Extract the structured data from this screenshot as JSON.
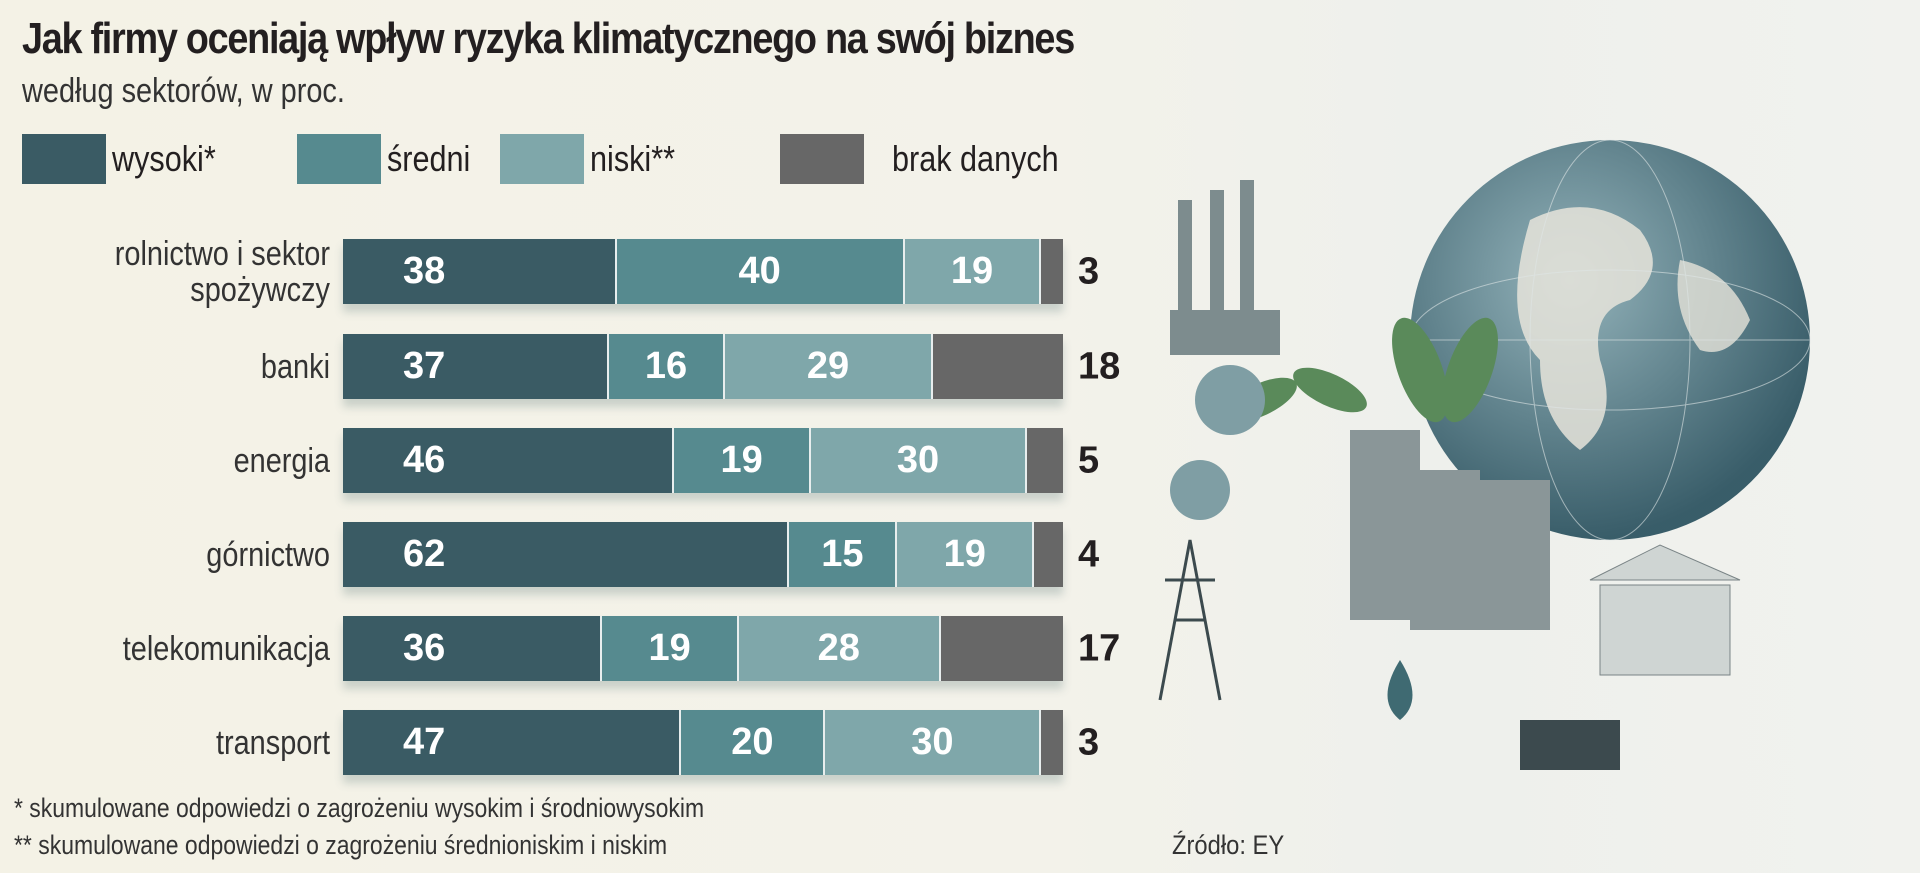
{
  "chart_data": {
    "type": "bar",
    "orientation": "horizontal",
    "stacked": true,
    "title": "Jak firmy oceniają wpływ ryzyka klimatycznego na swój biznes",
    "subtitle": "według sektorów, w proc.",
    "categories": [
      "rolnictwo i sektor spożywczy",
      "banki",
      "energia",
      "górnictwo",
      "telekomunikacja",
      "transport"
    ],
    "series": [
      {
        "name": "wysoki*",
        "color": "#3a5b64",
        "values": [
          38,
          37,
          46,
          62,
          36,
          47
        ]
      },
      {
        "name": "średni",
        "color": "#568a8f",
        "values": [
          40,
          16,
          19,
          15,
          19,
          20
        ]
      },
      {
        "name": "niski**",
        "color": "#7fa7aa",
        "values": [
          19,
          29,
          30,
          19,
          28,
          30
        ]
      },
      {
        "name": "brak danych",
        "color": "#676767",
        "values": [
          3,
          18,
          5,
          4,
          17,
          3
        ]
      }
    ],
    "xlim": [
      0,
      100
    ],
    "legend_position": "top",
    "grid": false,
    "footnotes": [
      "* skumulowane odpowiedzi o zagrożeniu wysokim i środniowysokim",
      "** skumulowane odpowiedzi o zagrożeniu średnioniskim i niskim"
    ],
    "source": "Źródło: EY"
  }
}
